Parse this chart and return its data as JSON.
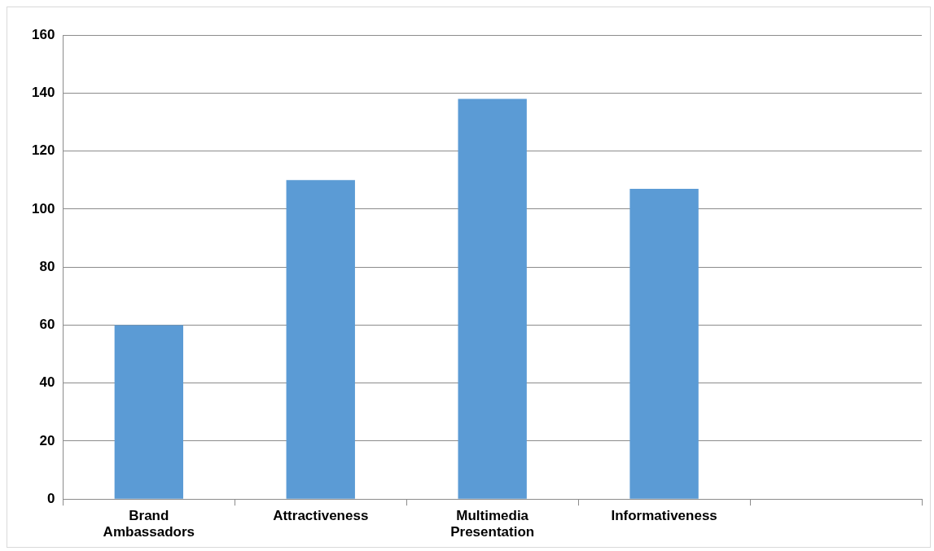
{
  "chart_data": {
    "type": "bar",
    "categories": [
      "Brand Ambassadors",
      "Attractiveness",
      "Multimedia Presentation",
      "Informativeness",
      null
    ],
    "values": [
      60,
      110,
      138,
      107,
      null
    ],
    "color": "#5b9bd5",
    "ylim": [
      0,
      160
    ],
    "yticks": [
      0,
      20,
      40,
      60,
      80,
      100,
      120,
      140,
      160
    ],
    "grid": "y",
    "legend": false
  }
}
